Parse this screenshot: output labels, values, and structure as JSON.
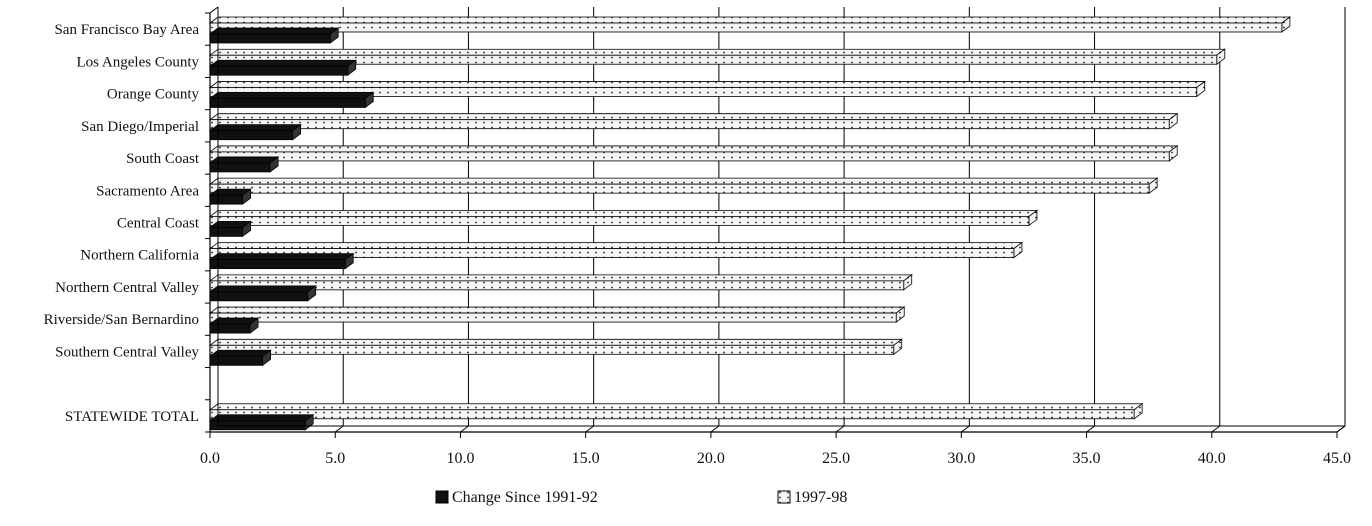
{
  "chart_data": {
    "type": "bar",
    "orientation": "horizontal",
    "style": "3d",
    "categories": [
      "San Francisco Bay Area",
      "Los Angeles County",
      "Orange County",
      "San Diego/Imperial",
      "South Coast",
      "Sacramento Area",
      "Central Coast",
      "Northern California",
      "Northern Central Valley",
      "Riverside/San Bernardino",
      "Southern Central Valley",
      "",
      "STATEWIDE TOTAL"
    ],
    "series": [
      {
        "name": "Change Since 1991-92",
        "color": "#111111",
        "pattern": "solid",
        "values": [
          4.8,
          5.5,
          6.2,
          3.3,
          2.4,
          1.3,
          1.3,
          5.4,
          3.9,
          1.6,
          2.1,
          null,
          3.8
        ]
      },
      {
        "name": "1997-98",
        "color": "#f2f2f2",
        "pattern": "dotted",
        "values": [
          42.8,
          40.2,
          39.4,
          38.3,
          38.3,
          37.5,
          32.7,
          32.1,
          27.7,
          27.4,
          27.3,
          null,
          36.9
        ]
      }
    ],
    "x_ticks": [
      "0.0",
      "5.0",
      "10.0",
      "15.0",
      "20.0",
      "25.0",
      "30.0",
      "35.0",
      "40.0",
      "45.0"
    ],
    "xlim": [
      0,
      45
    ],
    "grid": true,
    "legend_position": "bottom"
  }
}
